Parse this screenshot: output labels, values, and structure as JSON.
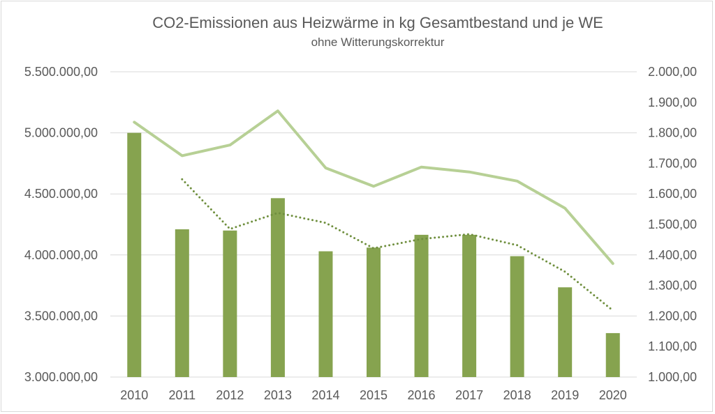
{
  "chart_data": {
    "type": "bar",
    "title": "CO2-Emissionen aus Heizwärme in kg Gesamtbestand und je WE",
    "subtitle": "ohne Witterungskorrektur",
    "categories": [
      "2010",
      "2011",
      "2012",
      "2013",
      "2014",
      "2015",
      "2016",
      "2017",
      "2018",
      "2019",
      "2020"
    ],
    "y_left": {
      "ylim": [
        3000000,
        5500000
      ],
      "ticks": [
        3000000,
        3500000,
        4000000,
        4500000,
        5000000,
        5500000
      ],
      "tick_labels": [
        "3.000.000,00",
        "3.500.000,00",
        "4.000.000,00",
        "4.500.000,00",
        "5.000.000,00",
        "5.500.000,00"
      ]
    },
    "y_right": {
      "ylim": [
        1000,
        2000
      ],
      "ticks": [
        1000,
        1100,
        1200,
        1300,
        1400,
        1500,
        1600,
        1700,
        1800,
        1900,
        2000
      ],
      "tick_labels": [
        "1.000,00",
        "1.100,00",
        "1.200,00",
        "1.300,00",
        "1.400,00",
        "1.500,00",
        "1.600,00",
        "1.700,00",
        "1.800,00",
        "1.900,00",
        "2.000,00"
      ]
    },
    "grid": true,
    "legend": "none",
    "series": [
      {
        "type": "bar",
        "axis": "left",
        "color": "#86a34f",
        "values": [
          5000000,
          4210000,
          4200000,
          4465000,
          4030000,
          4060000,
          4165000,
          4165000,
          3990000,
          3735000,
          3360000
        ]
      },
      {
        "type": "line",
        "axis": "right",
        "style": "solid",
        "color": "#b7d095",
        "values": [
          1835,
          1725,
          1760,
          1872,
          1685,
          1625,
          1688,
          1672,
          1642,
          1553,
          1372
        ]
      },
      {
        "type": "line",
        "axis": "right",
        "style": "dotted",
        "color": "#6f8f3e",
        "values": [
          null,
          1648,
          1485,
          1538,
          1505,
          1422,
          1452,
          1468,
          1432,
          1345,
          1218
        ]
      }
    ]
  }
}
